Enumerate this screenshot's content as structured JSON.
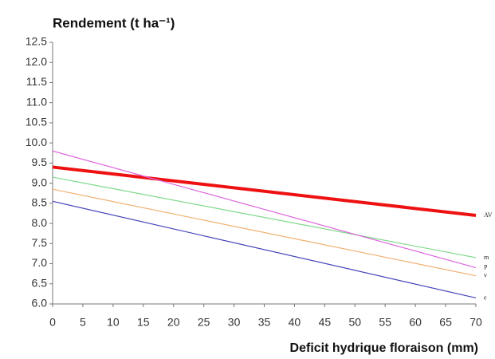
{
  "chart_data": {
    "type": "line",
    "y_label": "Rendement (t ha⁻¹)",
    "x_label": "Deficit hydrique floraison (mm)",
    "x": [
      0,
      70
    ],
    "series": [
      {
        "name": "AV",
        "color": "#ee1111",
        "line_width": 4,
        "values": [
          9.4,
          8.2
        ]
      },
      {
        "name": "m",
        "color": "#7fd98a",
        "line_width": 1.2,
        "values": [
          9.15,
          7.15
        ]
      },
      {
        "name": "P",
        "color": "#dd66dd",
        "line_width": 1.2,
        "values": [
          9.8,
          6.9
        ]
      },
      {
        "name": "v",
        "color": "#f0b070",
        "line_width": 1.2,
        "values": [
          8.85,
          6.7
        ]
      },
      {
        "name": "e",
        "color": "#4444bb",
        "line_width": 1.2,
        "values": [
          8.55,
          6.15
        ]
      }
    ],
    "xlim": [
      0,
      70
    ],
    "xticks": [
      0,
      5,
      10,
      15,
      20,
      25,
      30,
      35,
      40,
      45,
      50,
      55,
      60,
      65,
      70
    ],
    "ylim": [
      6.0,
      12.5
    ],
    "yticks": [
      {
        "value": 6,
        "label": "6.0"
      },
      {
        "value": 6.5,
        "label": "6.5"
      },
      {
        "value": 7,
        "label": "7.0"
      },
      {
        "value": 7.5,
        "label": "7.5"
      },
      {
        "value": 8,
        "label": "8.0"
      },
      {
        "value": 8.5,
        "label": "8.5"
      },
      {
        "value": 9,
        "label": "9.0"
      },
      {
        "value": 9.5,
        "label": "9.5"
      },
      {
        "value": 10,
        "label": "10.0"
      },
      {
        "value": 10.5,
        "label": "10.5"
      },
      {
        "value": 11,
        "label": "11.0"
      },
      {
        "value": 11.5,
        "label": "11.5"
      },
      {
        "value": 12,
        "label": "12.0"
      },
      {
        "value": 12.5,
        "label": "12.5"
      }
    ],
    "grid": false
  }
}
